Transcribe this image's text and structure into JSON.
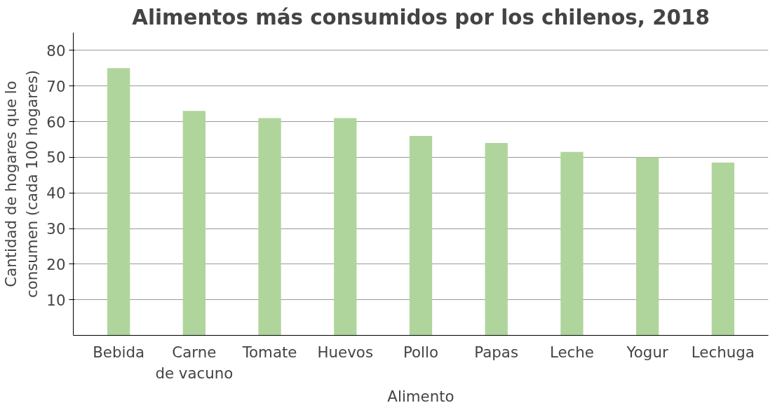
{
  "chart_data": {
    "type": "bar",
    "title": "Alimentos más consumidos por los chilenos, 2018",
    "xlabel": "Alimento",
    "ylabel": "Cantidad de hogares que lo consumen (cada 100 hogares)",
    "categories": [
      "Bebida",
      "Carne de vacuno",
      "Tomate",
      "Huevos",
      "Pollo",
      "Papas",
      "Leche",
      "Yogur",
      "Lechuga"
    ],
    "values": [
      75,
      63,
      61,
      61,
      56,
      54,
      51.5,
      50,
      48.5
    ],
    "color": "#b0d59c",
    "ylim": [
      0,
      85
    ],
    "yticks": [
      10,
      20,
      30,
      40,
      50,
      60,
      70,
      80
    ],
    "grid": "y"
  }
}
